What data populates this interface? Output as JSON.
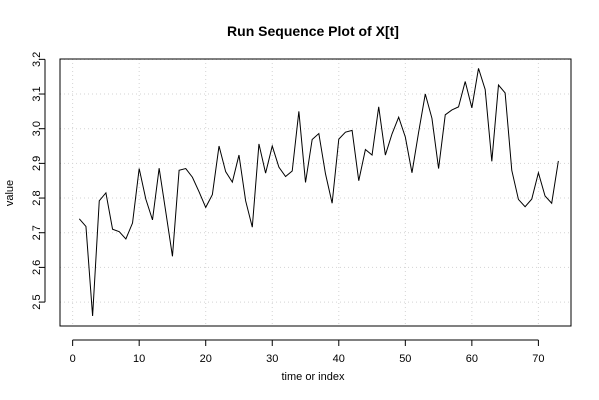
{
  "chart_data": {
    "type": "line",
    "title": "Run Sequence Plot of X[t]",
    "xlabel": "time or index",
    "ylabel": "value",
    "xlim": [
      -1.9,
      74.9
    ],
    "ylim": [
      2.431,
      3.201
    ],
    "xticks": [
      0,
      10,
      20,
      30,
      40,
      50,
      60,
      70
    ],
    "yticks": [
      2.5,
      2.6,
      2.7,
      2.8,
      2.9,
      3.0,
      3.1,
      3.2
    ],
    "ytick_labels": [
      "2.5",
      "2.6",
      "2.7",
      "2.8",
      "2.9",
      "3.0",
      "3.1",
      "3.2"
    ],
    "grid": true,
    "line_color": "#000000",
    "grid_color": "#d3d3d3",
    "series": [
      {
        "x": [
          1,
          2,
          3,
          4,
          5,
          6,
          7,
          8,
          9,
          10,
          11,
          12,
          13,
          14,
          15,
          16,
          17,
          18,
          19,
          20,
          21,
          22,
          23,
          24,
          25,
          26,
          27,
          28,
          29,
          30,
          31,
          32,
          33,
          34,
          35,
          36,
          37,
          38,
          39,
          40,
          41,
          42,
          43,
          44,
          45,
          46,
          47,
          48,
          49,
          50,
          51,
          52,
          53,
          54,
          55,
          56,
          57,
          58,
          59,
          60,
          61,
          62,
          63,
          64,
          65,
          66,
          67,
          68,
          69,
          70,
          71,
          72,
          73
        ],
        "values": [
          2.74,
          2.718,
          2.46,
          2.792,
          2.815,
          2.71,
          2.703,
          2.682,
          2.728,
          2.885,
          2.797,
          2.737,
          2.886,
          2.76,
          2.632,
          2.88,
          2.885,
          2.86,
          2.818,
          2.773,
          2.81,
          2.95,
          2.876,
          2.846,
          2.924,
          2.792,
          2.716,
          2.956,
          2.872,
          2.95,
          2.889,
          2.862,
          2.878,
          3.05,
          2.845,
          2.969,
          2.986,
          2.87,
          2.785,
          2.97,
          2.99,
          2.995,
          2.85,
          2.94,
          2.924,
          3.063,
          2.924,
          2.985,
          3.033,
          2.976,
          2.873,
          2.99,
          3.1,
          3.03,
          2.885,
          3.04,
          3.054,
          3.063,
          3.136,
          3.06,
          3.174,
          3.113,
          2.906,
          3.126,
          3.103,
          2.88,
          2.796,
          2.775,
          2.797,
          2.873,
          2.806,
          2.785,
          2.907
        ]
      }
    ]
  }
}
